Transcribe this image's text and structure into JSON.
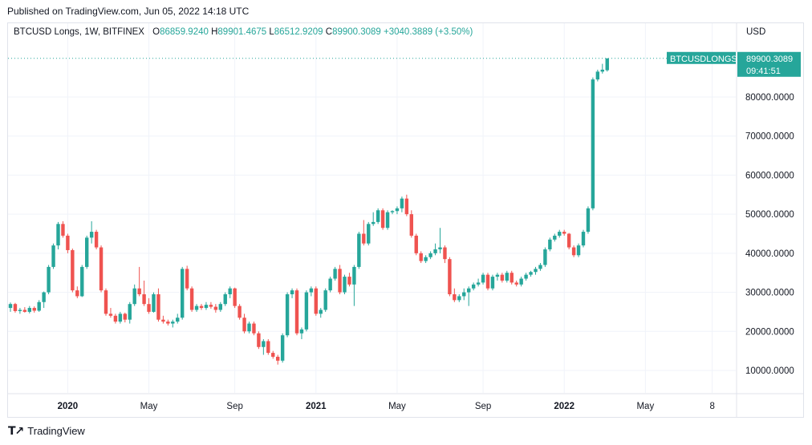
{
  "header": {
    "published": "Published on TradingView.com, Jun 05, 2022 14:18 UTC"
  },
  "legend": {
    "symbol": "BTCUSD Longs, 1W, BITFINEX",
    "o_label": "O",
    "o_value": "86859.9240",
    "h_label": "H",
    "h_value": "89901.4675",
    "l_label": "L",
    "l_value": "86512.9209",
    "c_value": "89900.3089",
    "change": "+3040.3889 (+3.50%)"
  },
  "axis": {
    "currency": "USD"
  },
  "price_tag": {
    "name": "BTCUSDLONGS",
    "value": "89900.3089",
    "countdown": "09:41:51"
  },
  "footer": {
    "brand": "TradingView"
  },
  "colors": {
    "up": "#26a69a",
    "down": "#ef5350",
    "grid": "#f0f3fa",
    "axis_text": "#131722"
  },
  "chart_data": {
    "type": "candlestick",
    "title": "BTCUSD Longs, 1W, BITFINEX",
    "xlabel": "",
    "ylabel": "USD",
    "ylim": [
      0,
      95000
    ],
    "y_ticks": [
      10000,
      20000,
      30000,
      40000,
      50000,
      60000,
      70000,
      80000
    ],
    "y_tick_labels": [
      "10000.0000",
      "20000.0000",
      "30000.0000",
      "40000.0000",
      "50000.0000",
      "60000.0000",
      "70000.0000",
      "80000.0000"
    ],
    "x_ticks": [
      {
        "label": "2020",
        "week": 12,
        "bold": true
      },
      {
        "label": "May",
        "week": 29,
        "bold": false
      },
      {
        "label": "Sep",
        "week": 47,
        "bold": false
      },
      {
        "label": "2021",
        "week": 64,
        "bold": true
      },
      {
        "label": "May",
        "week": 81,
        "bold": false
      },
      {
        "label": "Sep",
        "week": 99,
        "bold": false
      },
      {
        "label": "2022",
        "week": 116,
        "bold": true
      },
      {
        "label": "May",
        "week": 133,
        "bold": false
      },
      {
        "label": "8",
        "week": 147,
        "bold": false
      }
    ],
    "last_price": 89900.3089,
    "ohlc": [
      [
        26000,
        27400,
        25000,
        27000
      ],
      [
        27000,
        27300,
        24800,
        25200
      ],
      [
        25200,
        26000,
        24500,
        25500
      ],
      [
        25500,
        26200,
        24800,
        25000
      ],
      [
        25000,
        26500,
        24600,
        26000
      ],
      [
        26000,
        26400,
        24800,
        25300
      ],
      [
        25300,
        28000,
        25000,
        27500
      ],
      [
        27500,
        30200,
        26000,
        30000
      ],
      [
        30000,
        37000,
        29500,
        36500
      ],
      [
        36500,
        42500,
        36000,
        42000
      ],
      [
        42000,
        48000,
        41000,
        47500
      ],
      [
        47500,
        48200,
        44000,
        44500
      ],
      [
        44500,
        45000,
        40000,
        40800
      ],
      [
        40800,
        41200,
        30000,
        30500
      ],
      [
        30500,
        31500,
        28500,
        29000
      ],
      [
        29000,
        37000,
        28800,
        36500
      ],
      [
        36500,
        44500,
        36000,
        44000
      ],
      [
        44000,
        48200,
        42500,
        45500
      ],
      [
        45500,
        46000,
        41000,
        41500
      ],
      [
        41500,
        42000,
        30000,
        30500
      ],
      [
        30500,
        31000,
        24000,
        24500
      ],
      [
        24500,
        26000,
        23500,
        24000
      ],
      [
        24000,
        24500,
        22000,
        22500
      ],
      [
        22500,
        25000,
        22000,
        24500
      ],
      [
        24500,
        24800,
        22300,
        23000
      ],
      [
        23000,
        27500,
        22000,
        27000
      ],
      [
        27000,
        32000,
        26500,
        31000
      ],
      [
        31000,
        36500,
        29000,
        29500
      ],
      [
        29500,
        33000,
        26500,
        27000
      ],
      [
        27000,
        28500,
        24500,
        25000
      ],
      [
        25000,
        30000,
        24800,
        29500
      ],
      [
        29500,
        31000,
        22500,
        23000
      ],
      [
        23000,
        24000,
        22000,
        22500
      ],
      [
        22500,
        23000,
        21500,
        22000
      ],
      [
        22000,
        23000,
        21000,
        22500
      ],
      [
        22500,
        24500,
        22000,
        23500
      ],
      [
        23500,
        36500,
        23000,
        36000
      ],
      [
        36000,
        36800,
        30500,
        31000
      ],
      [
        31000,
        31500,
        25000,
        25500
      ],
      [
        25500,
        27000,
        25000,
        26500
      ],
      [
        26500,
        27000,
        25500,
        26000
      ],
      [
        26000,
        27500,
        25500,
        26800
      ],
      [
        26800,
        27500,
        25800,
        26300
      ],
      [
        26300,
        27000,
        24800,
        25500
      ],
      [
        25500,
        27500,
        25000,
        27000
      ],
      [
        27000,
        30000,
        26500,
        29500
      ],
      [
        29500,
        31500,
        28500,
        31000
      ],
      [
        31000,
        31200,
        26000,
        26500
      ],
      [
        26500,
        27000,
        23000,
        23500
      ],
      [
        23500,
        24500,
        19500,
        20000
      ],
      [
        20000,
        22500,
        19500,
        22000
      ],
      [
        22000,
        22500,
        19000,
        19500
      ],
      [
        19500,
        20000,
        15500,
        16000
      ],
      [
        16000,
        18000,
        14000,
        17500
      ],
      [
        17500,
        18000,
        14000,
        14500
      ],
      [
        14500,
        15000,
        13000,
        13500
      ],
      [
        13500,
        14000,
        11500,
        12500
      ],
      [
        12500,
        19500,
        12000,
        19000
      ],
      [
        19000,
        30000,
        18500,
        29500
      ],
      [
        29500,
        31000,
        28500,
        30500
      ],
      [
        30500,
        31000,
        19000,
        19500
      ],
      [
        19500,
        21000,
        18000,
        20500
      ],
      [
        20500,
        30500,
        20000,
        30000
      ],
      [
        30000,
        31500,
        29000,
        31000
      ],
      [
        31000,
        31500,
        24000,
        24500
      ],
      [
        24500,
        26000,
        23500,
        25500
      ],
      [
        25500,
        31000,
        25000,
        30500
      ],
      [
        30500,
        34000,
        30000,
        33500
      ],
      [
        33500,
        36500,
        33000,
        36000
      ],
      [
        36000,
        37000,
        29500,
        30000
      ],
      [
        30000,
        34500,
        29500,
        34000
      ],
      [
        34000,
        35000,
        31500,
        32000
      ],
      [
        32000,
        37000,
        26500,
        36500
      ],
      [
        36500,
        45500,
        36000,
        45000
      ],
      [
        45000,
        48500,
        42000,
        42500
      ],
      [
        42500,
        48000,
        42000,
        47500
      ],
      [
        47500,
        50500,
        47000,
        48000
      ],
      [
        48000,
        51500,
        47500,
        51000
      ],
      [
        51000,
        51500,
        46000,
        46500
      ],
      [
        46500,
        51000,
        46000,
        50500
      ],
      [
        50500,
        51000,
        50000,
        50800
      ],
      [
        50800,
        52000,
        50000,
        51500
      ],
      [
        51500,
        54500,
        50500,
        54000
      ],
      [
        54000,
        55000,
        49500,
        50000
      ],
      [
        50000,
        51000,
        44000,
        44500
      ],
      [
        44500,
        45000,
        39500,
        40000
      ],
      [
        40000,
        40500,
        37500,
        38000
      ],
      [
        38000,
        39500,
        37500,
        39000
      ],
      [
        39000,
        40500,
        38500,
        40000
      ],
      [
        40000,
        42500,
        39500,
        41000
      ],
      [
        41000,
        46500,
        40000,
        41500
      ],
      [
        41500,
        42000,
        37500,
        38500
      ],
      [
        38500,
        39000,
        29000,
        29500
      ],
      [
        29500,
        31000,
        27500,
        28000
      ],
      [
        28000,
        29500,
        27500,
        29000
      ],
      [
        29000,
        31000,
        28000,
        30000
      ],
      [
        30000,
        31500,
        26500,
        31000
      ],
      [
        31000,
        32500,
        30500,
        32000
      ],
      [
        32000,
        33500,
        31500,
        32500
      ],
      [
        32500,
        35000,
        32000,
        34500
      ],
      [
        34500,
        35000,
        30500,
        31000
      ],
      [
        31000,
        34500,
        30500,
        34000
      ],
      [
        34000,
        35000,
        33000,
        34500
      ],
      [
        34500,
        35000,
        32500,
        33000
      ],
      [
        33000,
        35500,
        32500,
        35000
      ],
      [
        35000,
        35500,
        32000,
        32500
      ],
      [
        32500,
        33000,
        31500,
        32000
      ],
      [
        32000,
        34000,
        31500,
        33500
      ],
      [
        33500,
        35000,
        33000,
        34500
      ],
      [
        34500,
        35500,
        34000,
        35200
      ],
      [
        35200,
        36500,
        34500,
        36000
      ],
      [
        36000,
        37500,
        35500,
        37000
      ],
      [
        37000,
        41500,
        36500,
        41000
      ],
      [
        41000,
        44000,
        40500,
        43500
      ],
      [
        43500,
        45000,
        43000,
        44500
      ],
      [
        44500,
        46000,
        44000,
        45500
      ],
      [
        45500,
        46000,
        44500,
        45000
      ],
      [
        45000,
        45200,
        41000,
        41500
      ],
      [
        41500,
        42000,
        39000,
        39500
      ],
      [
        39500,
        42500,
        39000,
        42000
      ],
      [
        42000,
        46000,
        41500,
        45500
      ],
      [
        45500,
        52000,
        45000,
        51500
      ],
      [
        51500,
        85000,
        51000,
        84500
      ],
      [
        84500,
        87000,
        84000,
        86500
      ],
      [
        86500,
        88500,
        86000,
        87000
      ],
      [
        86859.924,
        89901.4675,
        86512.9209,
        89900.3089
      ]
    ]
  }
}
